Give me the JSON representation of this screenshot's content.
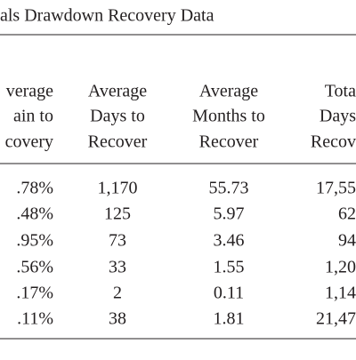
{
  "title": "als Drawdown Recovery Data",
  "table": {
    "header": [
      [
        "verage",
        "Average",
        "Average",
        "Tota"
      ],
      [
        "ain to",
        "Days to",
        "Months to",
        "Days"
      ],
      [
        "covery",
        "Recover",
        "Recover",
        "Recov"
      ]
    ],
    "rows": [
      [
        ".78%",
        "1,170",
        "55.73",
        "17,55"
      ],
      [
        ".48%",
        "125",
        "5.97",
        "62"
      ],
      [
        ".95%",
        "73",
        "3.46",
        "94"
      ],
      [
        ".56%",
        "33",
        "1.55",
        "1,20"
      ],
      [
        ".17%",
        "2",
        "0.11",
        "1,14"
      ],
      [
        ".11%",
        "38",
        "1.81",
        "21,47"
      ]
    ]
  }
}
